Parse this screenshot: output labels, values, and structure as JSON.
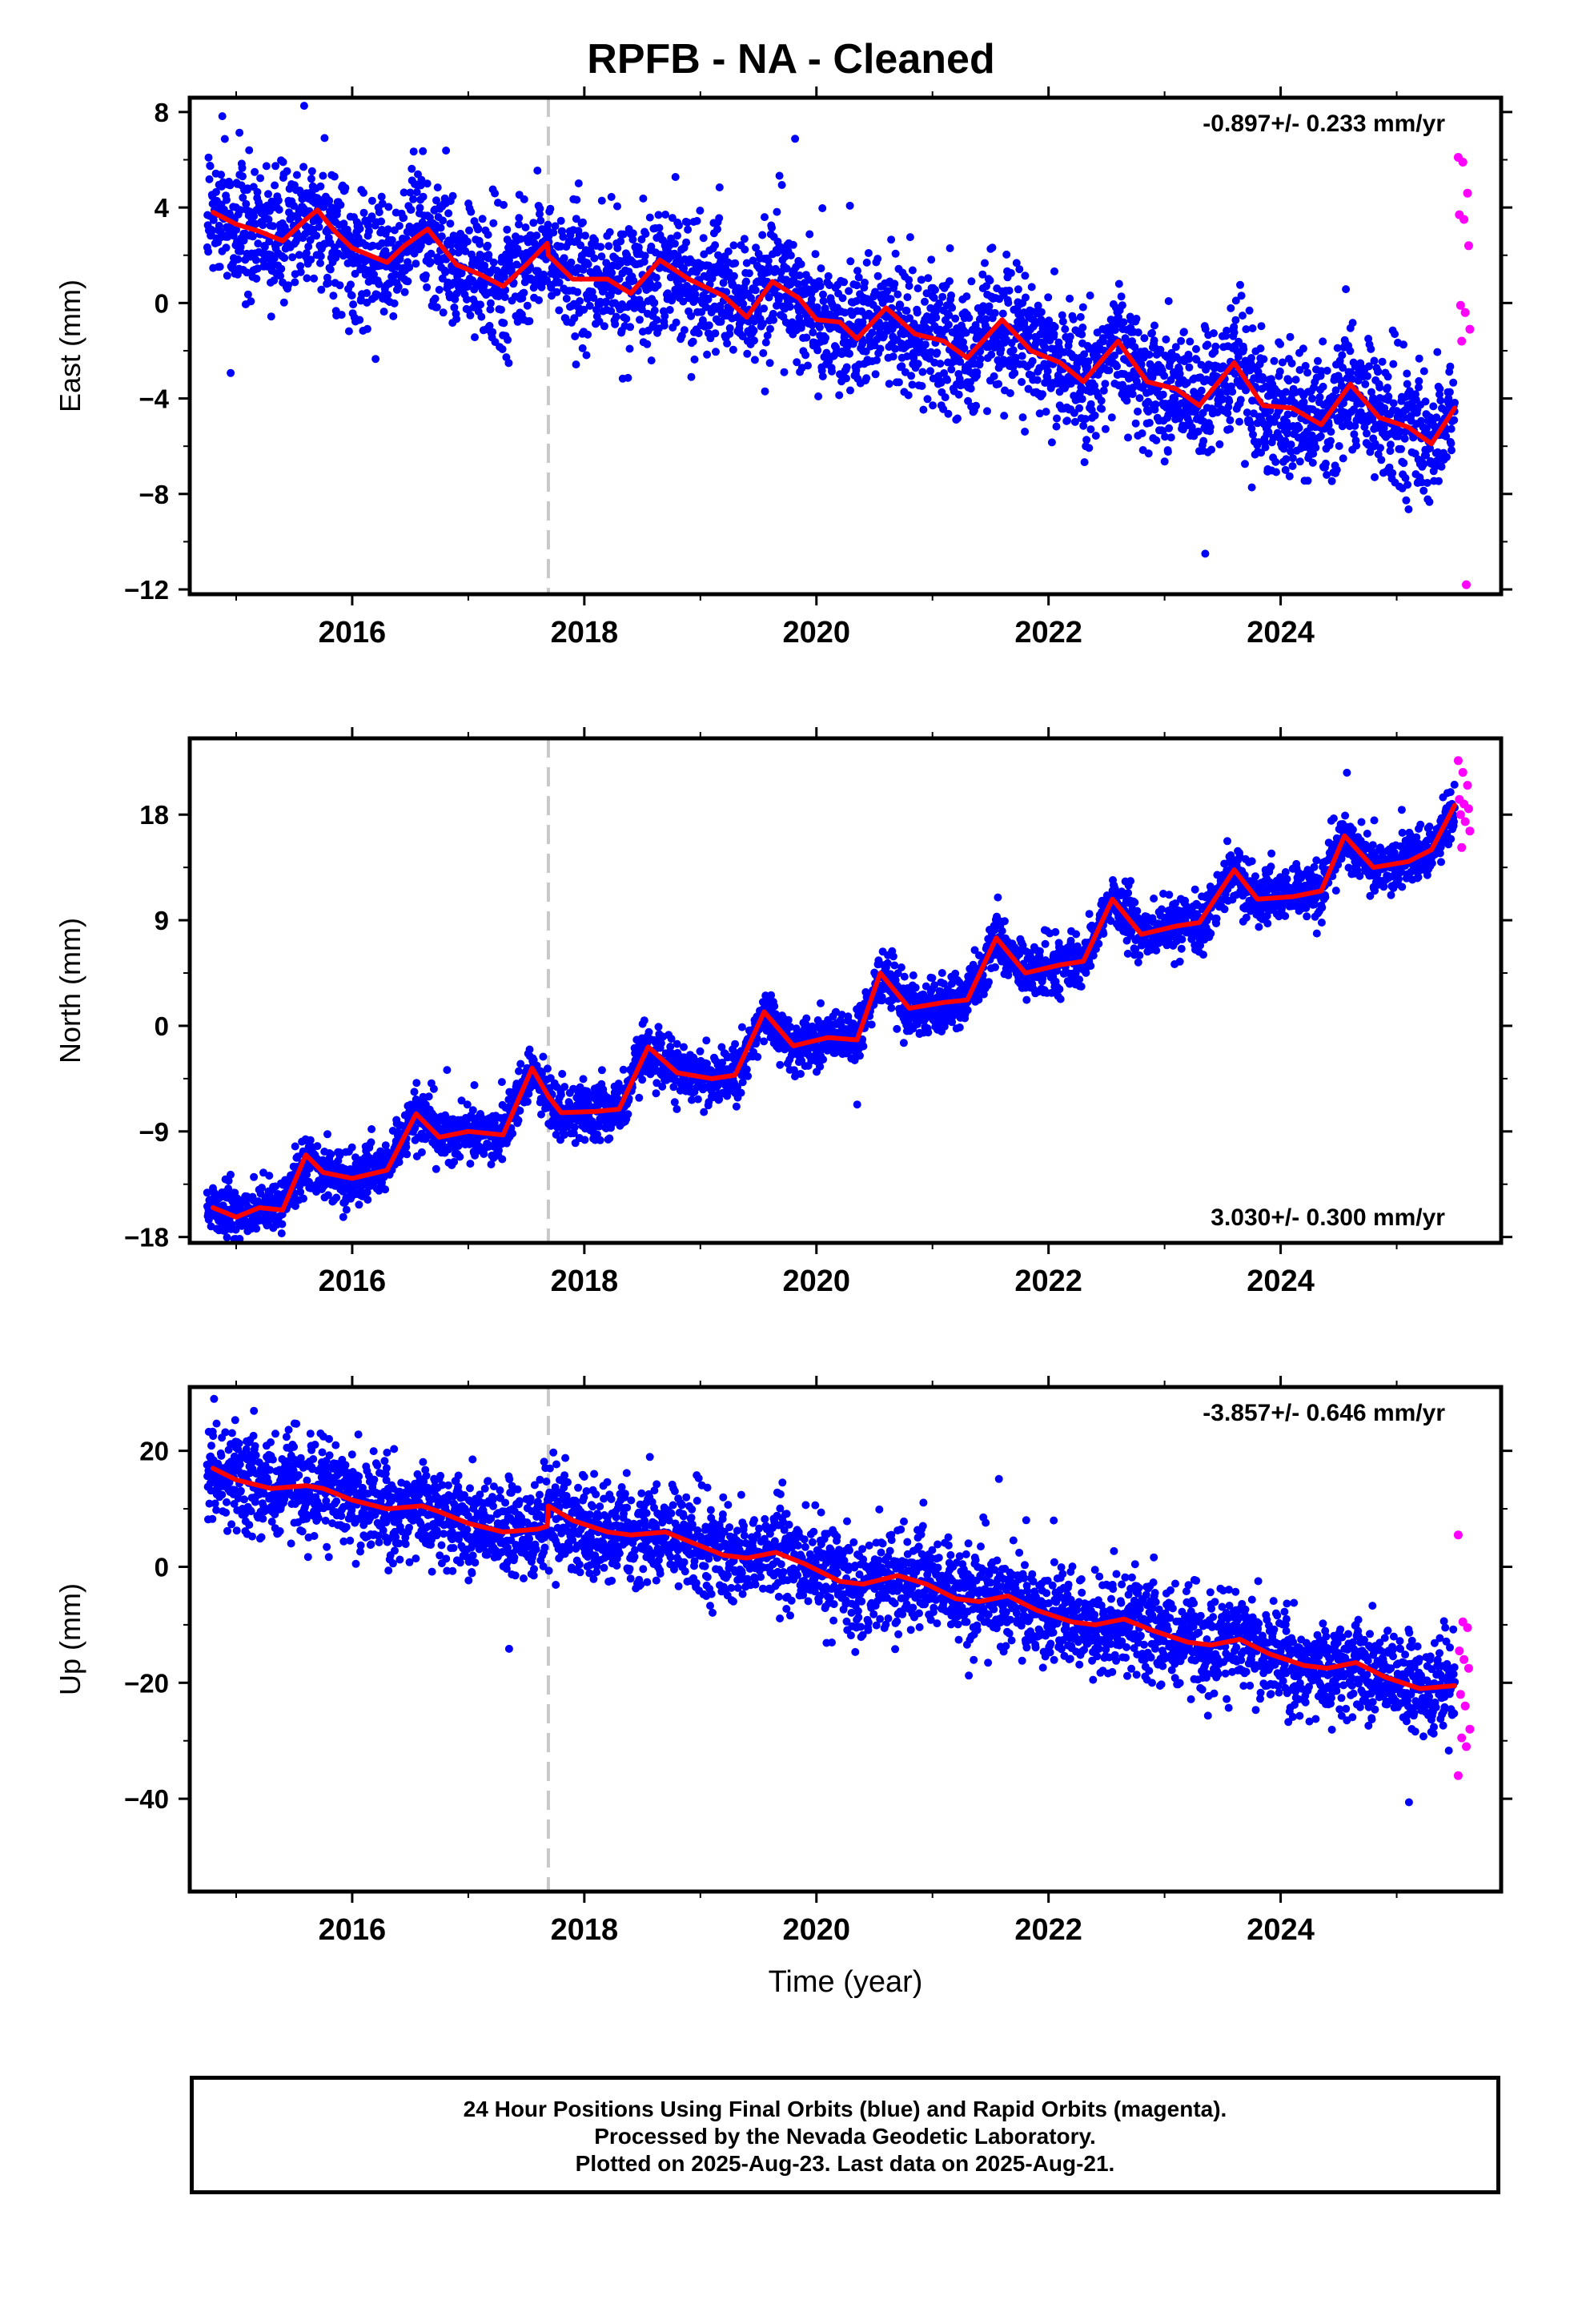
{
  "title": "RPFB  - NA - Cleaned",
  "footer": {
    "line1": "24 Hour Positions Using Final Orbits (blue) and Rapid Orbits (magenta).",
    "line2": "Processed by the Nevada Geodetic Laboratory.",
    "line3": "Plotted on 2025-Aug-23. Last data on 2025-Aug-21."
  },
  "colors": {
    "final": "#0000ff",
    "rapid": "#ff00ff",
    "model": "#ff0000",
    "equipment_change": "#c8c8c8"
  },
  "chart_data": [
    {
      "type": "scatter",
      "ylabel": "East (mm)",
      "xlabel": "",
      "rate": "-0.897+/- 0.233 mm/yr",
      "rate_position": "top-right",
      "xlim": [
        2014.6,
        2025.9
      ],
      "ylim": [
        -12.2,
        8.6
      ],
      "yticks": [
        8,
        4,
        0,
        -4,
        -8,
        -12
      ],
      "xticks": [
        2016,
        2018,
        2020,
        2022,
        2024
      ],
      "equipment_change": 2017.69,
      "data_range": [
        2014.75,
        2025.5
      ],
      "rapid_range": [
        2025.53,
        2025.63
      ],
      "model": {
        "x": [
          2014.8,
          2015.0,
          2015.2,
          2015.4,
          2015.6,
          2015.7,
          2015.85,
          2016.0,
          2016.3,
          2016.45,
          2016.65,
          2016.9,
          2017.1,
          2017.3,
          2017.5,
          2017.68,
          2017.69,
          2017.9,
          2018.2,
          2018.4,
          2018.65,
          2018.9,
          2019.2,
          2019.4,
          2019.62,
          2019.85,
          2020.0,
          2020.2,
          2020.35,
          2020.6,
          2020.85,
          2021.1,
          2021.3,
          2021.6,
          2021.85,
          2022.1,
          2022.3,
          2022.6,
          2022.85,
          2023.1,
          2023.3,
          2023.6,
          2023.85,
          2024.1,
          2024.35,
          2024.6,
          2024.85,
          2025.1,
          2025.3,
          2025.5
        ],
        "y": [
          3.8,
          3.3,
          3.0,
          2.6,
          3.5,
          3.9,
          3.0,
          2.3,
          1.7,
          2.4,
          3.1,
          1.6,
          1.2,
          0.7,
          1.6,
          2.5,
          2.0,
          1.0,
          1.0,
          0.4,
          1.8,
          1.0,
          0.3,
          -0.6,
          0.9,
          0.2,
          -0.7,
          -0.8,
          -1.5,
          -0.2,
          -1.3,
          -1.6,
          -2.3,
          -0.7,
          -2.0,
          -2.5,
          -3.3,
          -1.6,
          -3.3,
          -3.6,
          -4.3,
          -2.5,
          -4.3,
          -4.4,
          -5.1,
          -3.4,
          -4.8,
          -5.2,
          -5.9,
          -4.4
        ]
      },
      "trend_knots": {
        "x": [
          2014.75,
          2017.69,
          2019.8,
          2022.0,
          2023.9,
          2025.5
        ],
        "y": [
          3.3,
          1.5,
          1.8,
          -2.4,
          -6.2,
          -5.7
        ]
      },
      "seasonal_amplitude": 0.6,
      "noise_sigma": 1.35,
      "rapid_values": [
        6.1,
        5.9,
        4.6,
        3.7,
        3.5,
        2.4,
        -0.1,
        -0.4,
        -1.1,
        -1.6,
        -11.8
      ]
    },
    {
      "type": "scatter",
      "ylabel": "North (mm)",
      "xlabel": "",
      "rate": "3.030+/- 0.300 mm/yr",
      "rate_position": "bottom-right",
      "xlim": [
        2014.6,
        2025.9
      ],
      "ylim": [
        -18.5,
        24.5
      ],
      "yticks": [
        18,
        9,
        0,
        -9,
        -18
      ],
      "xticks": [
        2016,
        2018,
        2020,
        2022,
        2024
      ],
      "equipment_change": 2017.69,
      "data_range": [
        2014.75,
        2025.5
      ],
      "rapid_range": [
        2025.53,
        2025.63
      ],
      "model": {
        "x": [
          2014.8,
          2015.0,
          2015.2,
          2015.4,
          2015.6,
          2015.75,
          2016.0,
          2016.3,
          2016.55,
          2016.75,
          2017.0,
          2017.3,
          2017.55,
          2017.69,
          2017.8,
          2018.1,
          2018.3,
          2018.55,
          2018.8,
          2019.1,
          2019.3,
          2019.55,
          2019.8,
          2020.1,
          2020.35,
          2020.55,
          2020.8,
          2021.1,
          2021.3,
          2021.55,
          2021.8,
          2022.1,
          2022.3,
          2022.55,
          2022.8,
          2023.1,
          2023.3,
          2023.6,
          2023.8,
          2024.1,
          2024.35,
          2024.55,
          2024.8,
          2025.1,
          2025.3,
          2025.5
        ],
        "y": [
          -15.5,
          -16.3,
          -15.5,
          -15.7,
          -11.0,
          -12.5,
          -13.0,
          -12.3,
          -7.5,
          -9.5,
          -9.0,
          -9.3,
          -3.6,
          -6.0,
          -7.4,
          -7.3,
          -7.1,
          -1.8,
          -4.0,
          -4.5,
          -4.2,
          1.2,
          -1.7,
          -1.0,
          -1.2,
          4.5,
          1.5,
          2.0,
          2.2,
          7.5,
          4.5,
          5.2,
          5.5,
          10.8,
          7.8,
          8.5,
          8.8,
          13.3,
          10.8,
          11.0,
          11.5,
          16.2,
          13.5,
          14.0,
          15.0,
          18.8
        ]
      },
      "trend_knots": {
        "x": [
          2014.75,
          2016.0,
          2018.0,
          2020.0,
          2022.0,
          2023.0,
          2024.0,
          2025.5
        ],
        "y": [
          -15.0,
          -12.5,
          -7.5,
          -1.5,
          3.5,
          8.5,
          14.5,
          17.5
        ]
      },
      "seasonal_amplitude": 1.8,
      "noise_sigma": 1.15,
      "rapid_values": [
        22.6,
        21.6,
        20.5,
        19.3,
        18.9,
        18.5,
        18.0,
        17.4,
        16.6,
        15.2
      ]
    },
    {
      "type": "scatter",
      "ylabel": "Up (mm)",
      "xlabel": "Time (year)",
      "rate": "-3.857+/- 0.646 mm/yr",
      "rate_position": "top-right",
      "xlim": [
        2014.6,
        2025.9
      ],
      "ylim": [
        -56,
        31
      ],
      "yticks": [
        20,
        0,
        -20,
        -40
      ],
      "xticks": [
        2016,
        2018,
        2020,
        2022,
        2024
      ],
      "equipment_change": 2017.69,
      "data_range": [
        2014.75,
        2025.5
      ],
      "rapid_range": [
        2025.53,
        2025.63
      ],
      "model": {
        "x": [
          2014.8,
          2015.0,
          2015.3,
          2015.6,
          2015.75,
          2016.0,
          2016.3,
          2016.6,
          2016.75,
          2017.0,
          2017.3,
          2017.6,
          2017.68,
          2017.69,
          2017.9,
          2018.2,
          2018.4,
          2018.7,
          2018.95,
          2019.2,
          2019.4,
          2019.65,
          2019.9,
          2020.2,
          2020.4,
          2020.7,
          2020.95,
          2021.2,
          2021.4,
          2021.65,
          2021.9,
          2022.2,
          2022.4,
          2022.65,
          2022.9,
          2023.2,
          2023.4,
          2023.65,
          2023.9,
          2024.2,
          2024.4,
          2024.65,
          2024.9,
          2025.2,
          2025.5
        ],
        "y": [
          17.0,
          15.0,
          13.5,
          14.0,
          13.5,
          11.5,
          10.0,
          10.5,
          9.5,
          7.5,
          6.0,
          6.5,
          7.0,
          10.5,
          8.0,
          6.0,
          5.5,
          6.0,
          4.0,
          2.0,
          1.5,
          2.5,
          0.5,
          -2.5,
          -3.0,
          -1.5,
          -3.0,
          -5.5,
          -6.0,
          -5.0,
          -7.5,
          -9.5,
          -10.0,
          -9.0,
          -11.0,
          -13.0,
          -13.5,
          -12.5,
          -15.0,
          -17.0,
          -17.5,
          -16.5,
          -19.0,
          -21.0,
          -20.5
        ]
      },
      "trend_knots": {
        "x": [
          2014.75,
          2017.69,
          2020.5,
          2022.5,
          2025.5
        ],
        "y": [
          13.5,
          6.0,
          -1.5,
          -8.0,
          -23.0
        ]
      },
      "seasonal_amplitude": 1.0,
      "noise_sigma": 4.2,
      "rapid_values": [
        5.5,
        -9.5,
        -10.5,
        -14.5,
        -16.0,
        -17.5,
        -22.0,
        -24.0,
        -28.0,
        -29.5,
        -31.0,
        -36.0
      ]
    }
  ]
}
